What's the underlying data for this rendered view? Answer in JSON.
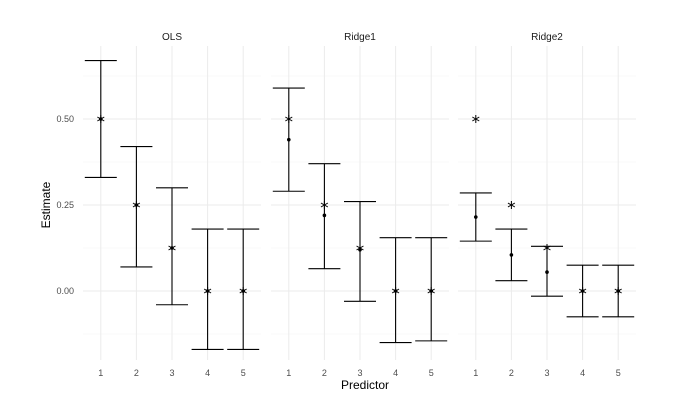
{
  "chart_data": {
    "type": "errorbar",
    "xlabel": "Predictor",
    "ylabel": "Estimate",
    "ylim": [
      -0.16,
      0.72
    ],
    "y_ticks": [
      0.0,
      0.25,
      0.5
    ],
    "y_tick_labels": [
      "0.00",
      "0.25",
      "0.50"
    ],
    "categories": [
      "1",
      "2",
      "3",
      "4",
      "5"
    ],
    "grid": true,
    "legend": "none",
    "markers": {
      "estimate": "dot",
      "true_value": "asterisk"
    },
    "panels": [
      {
        "title": "OLS",
        "true_values": [
          0.5,
          0.25,
          0.125,
          0.0,
          0.0
        ],
        "estimates": [
          0.5,
          0.25,
          0.125,
          0.0,
          0.0
        ],
        "lower": [
          0.33,
          0.07,
          -0.04,
          -0.17,
          -0.17
        ],
        "upper": [
          0.67,
          0.42,
          0.3,
          0.18,
          0.18
        ]
      },
      {
        "title": "Ridge1",
        "true_values": [
          0.5,
          0.25,
          0.125,
          0.0,
          0.0
        ],
        "estimates": [
          0.44,
          0.22,
          0.12,
          0.0,
          0.0
        ],
        "lower": [
          0.29,
          0.065,
          -0.03,
          -0.15,
          -0.145
        ],
        "upper": [
          0.59,
          0.37,
          0.26,
          0.155,
          0.155
        ]
      },
      {
        "title": "Ridge2",
        "true_values": [
          0.5,
          0.25,
          0.125,
          0.0,
          0.0
        ],
        "estimates": [
          0.215,
          0.105,
          0.055,
          0.0,
          0.0
        ],
        "lower": [
          0.145,
          0.03,
          -0.015,
          -0.075,
          -0.075
        ],
        "upper": [
          0.285,
          0.18,
          0.13,
          0.075,
          0.075
        ]
      }
    ]
  }
}
